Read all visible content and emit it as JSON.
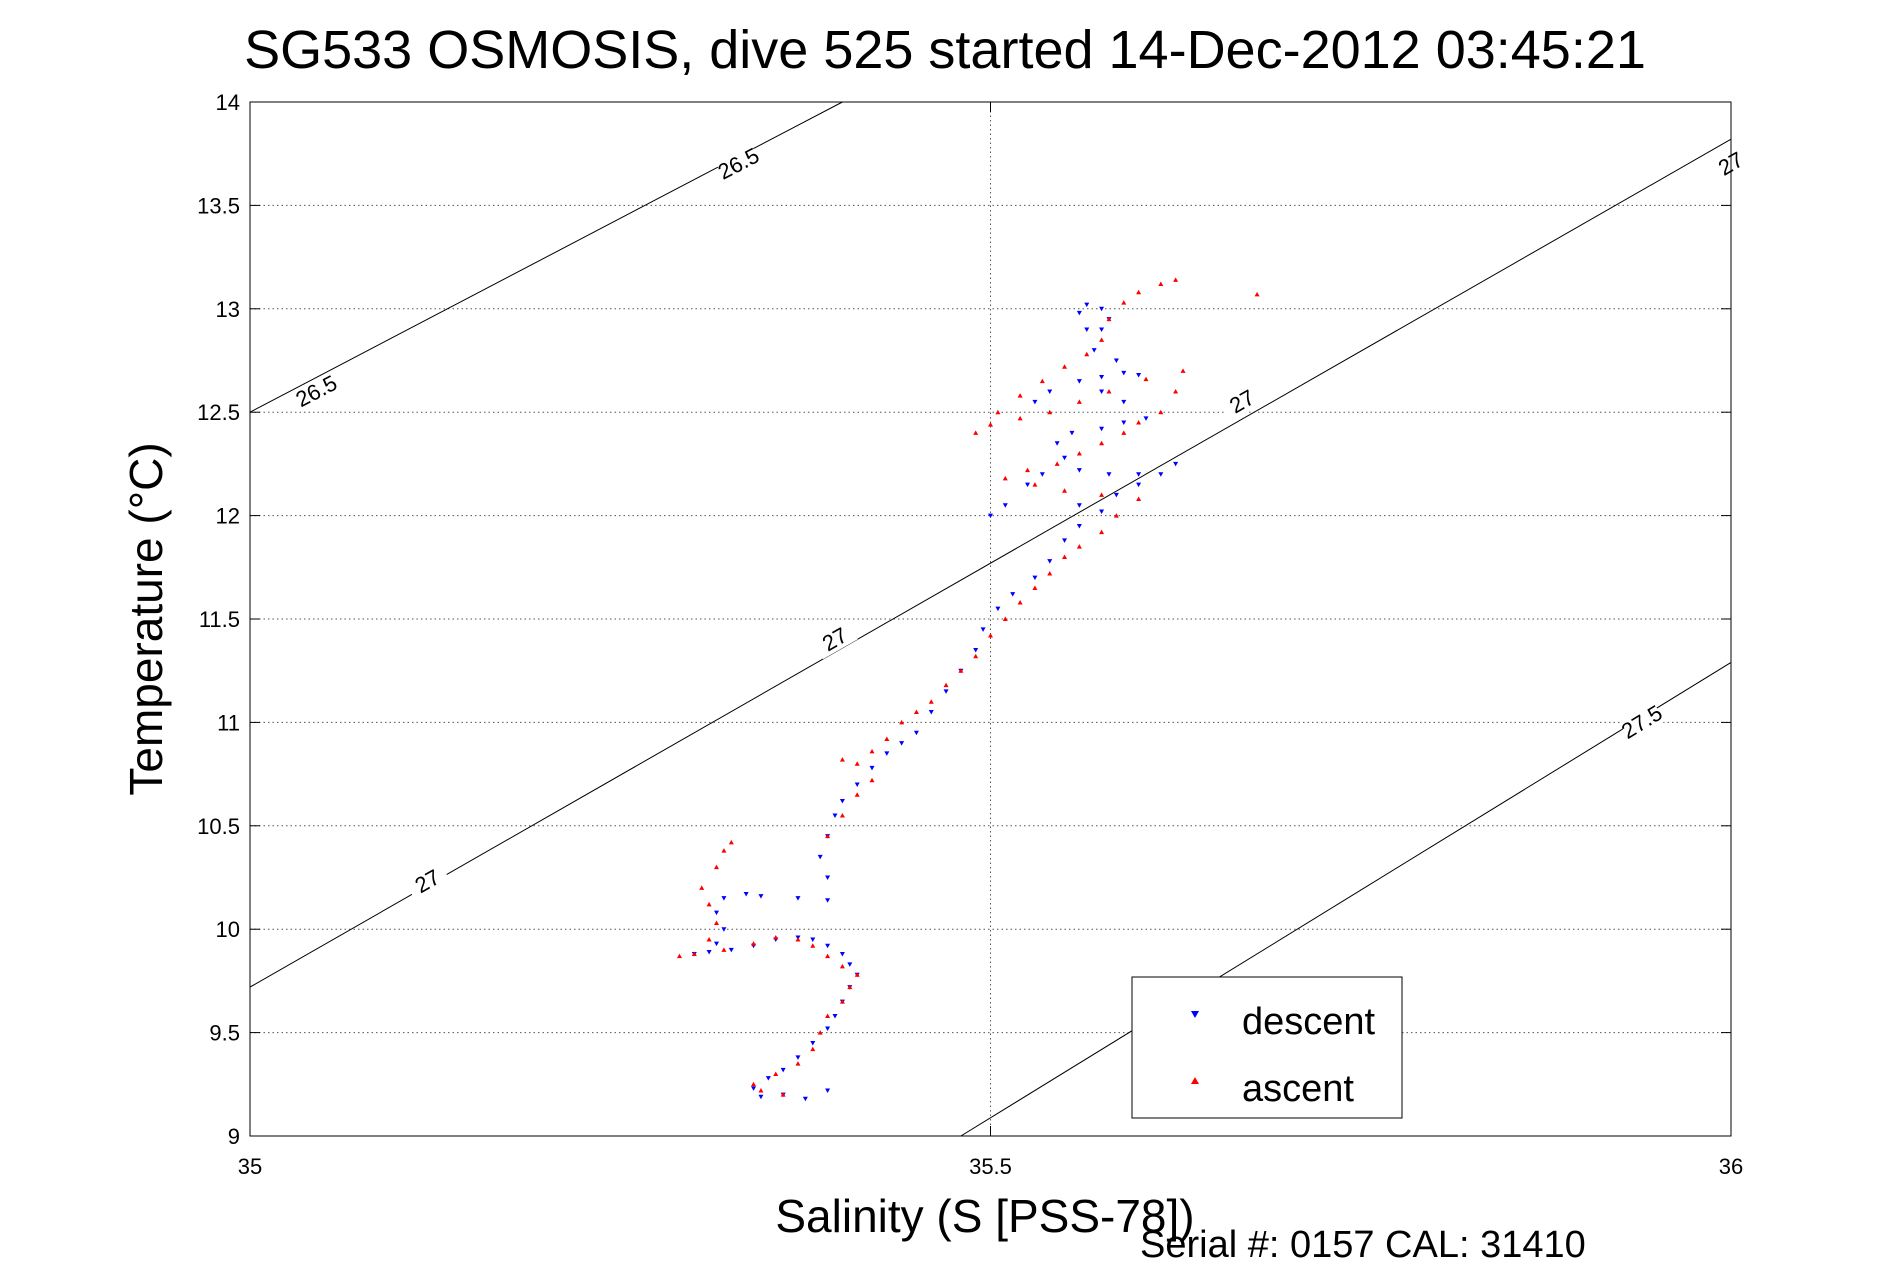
{
  "chart_data": {
    "type": "scatter",
    "title": "SG533 OSMOSIS, dive 525 started 14-Dec-2012 03:45:21",
    "xlabel": "Salinity (S [PSS-78])",
    "ylabel": "Temperature (°C)",
    "xlim": [
      35,
      36
    ],
    "ylim": [
      9,
      14
    ],
    "xticks": [
      35,
      35.5,
      36
    ],
    "xtick_labels": [
      "35",
      "35.5",
      "36"
    ],
    "yticks": [
      9,
      9.5,
      10,
      10.5,
      11,
      11.5,
      12,
      12.5,
      13,
      13.5,
      14
    ],
    "ytick_labels": [
      "9",
      "9.5",
      "10",
      "10.5",
      "11",
      "11.5",
      "12",
      "12.5",
      "13",
      "13.5",
      "14"
    ],
    "grid": true,
    "legend_position": "bottom-right",
    "footer": "Serial #: 0157  CAL: 31410",
    "contours": [
      {
        "label": "26.5",
        "x": [
          35.0,
          35.4
        ],
        "y": [
          12.5,
          14.0
        ],
        "label_positions": [
          [
            35.045,
            12.6
          ],
          [
            35.33,
            13.7
          ]
        ]
      },
      {
        "label": "27",
        "x": [
          35.0,
          36.0
        ],
        "y": [
          9.72,
          13.82
        ],
        "label_positions": [
          [
            35.12,
            10.23
          ],
          [
            35.395,
            11.4
          ],
          [
            35.67,
            12.55
          ],
          [
            36.0,
            13.7
          ]
        ]
      },
      {
        "label": "27.5",
        "x": [
          35.48,
          36.0
        ],
        "y": [
          9.0,
          11.29
        ],
        "label_positions": [
          [
            35.615,
            9.58
          ],
          [
            35.94,
            11.0
          ]
        ]
      }
    ],
    "series": [
      {
        "name": "descent",
        "color": "#0000ff",
        "marker": "triangle-down",
        "points": [
          [
            35.39,
            9.22
          ],
          [
            35.375,
            9.18
          ],
          [
            35.36,
            9.2
          ],
          [
            35.345,
            9.19
          ],
          [
            35.34,
            9.23
          ],
          [
            35.35,
            9.28
          ],
          [
            35.36,
            9.32
          ],
          [
            35.37,
            9.38
          ],
          [
            35.38,
            9.45
          ],
          [
            35.39,
            9.52
          ],
          [
            35.395,
            9.58
          ],
          [
            35.4,
            9.65
          ],
          [
            35.405,
            9.72
          ],
          [
            35.41,
            9.78
          ],
          [
            35.405,
            9.83
          ],
          [
            35.4,
            9.88
          ],
          [
            35.39,
            9.92
          ],
          [
            35.38,
            9.95
          ],
          [
            35.37,
            9.96
          ],
          [
            35.355,
            9.95
          ],
          [
            35.34,
            9.92
          ],
          [
            35.325,
            9.9
          ],
          [
            35.31,
            9.89
          ],
          [
            35.3,
            9.88
          ],
          [
            35.315,
            9.93
          ],
          [
            35.32,
            10.0
          ],
          [
            35.315,
            10.08
          ],
          [
            35.32,
            10.15
          ],
          [
            35.335,
            10.17
          ],
          [
            35.345,
            10.16
          ],
          [
            35.37,
            10.15
          ],
          [
            35.39,
            10.14
          ],
          [
            35.39,
            10.25
          ],
          [
            35.385,
            10.35
          ],
          [
            35.39,
            10.45
          ],
          [
            35.395,
            10.55
          ],
          [
            35.4,
            10.62
          ],
          [
            35.41,
            10.7
          ],
          [
            35.42,
            10.78
          ],
          [
            35.43,
            10.85
          ],
          [
            35.44,
            10.9
          ],
          [
            35.45,
            10.95
          ],
          [
            35.46,
            11.05
          ],
          [
            35.47,
            11.15
          ],
          [
            35.48,
            11.25
          ],
          [
            35.49,
            11.35
          ],
          [
            35.495,
            11.45
          ],
          [
            35.505,
            11.55
          ],
          [
            35.515,
            11.62
          ],
          [
            35.53,
            11.7
          ],
          [
            35.54,
            11.78
          ],
          [
            35.55,
            11.88
          ],
          [
            35.56,
            11.95
          ],
          [
            35.56,
            12.05
          ],
          [
            35.575,
            12.02
          ],
          [
            35.585,
            12.1
          ],
          [
            35.6,
            12.15
          ],
          [
            35.615,
            12.2
          ],
          [
            35.625,
            12.25
          ],
          [
            35.6,
            12.2
          ],
          [
            35.58,
            12.2
          ],
          [
            35.56,
            12.22
          ],
          [
            35.55,
            12.28
          ],
          [
            35.545,
            12.35
          ],
          [
            35.555,
            12.4
          ],
          [
            35.575,
            12.42
          ],
          [
            35.59,
            12.45
          ],
          [
            35.605,
            12.47
          ],
          [
            35.59,
            12.55
          ],
          [
            35.575,
            12.6
          ],
          [
            35.56,
            12.65
          ],
          [
            35.575,
            12.67
          ],
          [
            35.59,
            12.69
          ],
          [
            35.6,
            12.68
          ],
          [
            35.585,
            12.75
          ],
          [
            35.57,
            12.8
          ],
          [
            35.565,
            12.9
          ],
          [
            35.56,
            12.98
          ],
          [
            35.565,
            13.02
          ],
          [
            35.575,
            13.0
          ],
          [
            35.58,
            12.95
          ],
          [
            35.575,
            12.9
          ],
          [
            35.535,
            12.2
          ],
          [
            35.525,
            12.15
          ],
          [
            35.51,
            12.05
          ],
          [
            35.5,
            12.0
          ],
          [
            35.53,
            12.55
          ],
          [
            35.54,
            12.6
          ]
        ]
      },
      {
        "name": "ascent",
        "color": "#ff0000",
        "marker": "triangle-up",
        "points": [
          [
            35.36,
            9.2
          ],
          [
            35.345,
            9.22
          ],
          [
            35.34,
            9.25
          ],
          [
            35.355,
            9.3
          ],
          [
            35.37,
            9.35
          ],
          [
            35.38,
            9.42
          ],
          [
            35.385,
            9.5
          ],
          [
            35.39,
            9.58
          ],
          [
            35.4,
            9.65
          ],
          [
            35.405,
            9.72
          ],
          [
            35.41,
            9.78
          ],
          [
            35.4,
            9.82
          ],
          [
            35.39,
            9.87
          ],
          [
            35.38,
            9.92
          ],
          [
            35.37,
            9.95
          ],
          [
            35.355,
            9.96
          ],
          [
            35.34,
            9.93
          ],
          [
            35.32,
            9.9
          ],
          [
            35.3,
            9.88
          ],
          [
            35.29,
            9.87
          ],
          [
            35.31,
            9.95
          ],
          [
            35.315,
            10.03
          ],
          [
            35.31,
            10.12
          ],
          [
            35.305,
            10.2
          ],
          [
            35.315,
            10.3
          ],
          [
            35.32,
            10.38
          ],
          [
            35.325,
            10.42
          ],
          [
            35.39,
            10.45
          ],
          [
            35.4,
            10.55
          ],
          [
            35.41,
            10.65
          ],
          [
            35.42,
            10.72
          ],
          [
            35.41,
            10.8
          ],
          [
            35.4,
            10.82
          ],
          [
            35.42,
            10.86
          ],
          [
            35.43,
            10.92
          ],
          [
            35.44,
            11.0
          ],
          [
            35.45,
            11.05
          ],
          [
            35.46,
            11.1
          ],
          [
            35.47,
            11.18
          ],
          [
            35.48,
            11.25
          ],
          [
            35.49,
            11.32
          ],
          [
            35.5,
            11.42
          ],
          [
            35.51,
            11.5
          ],
          [
            35.52,
            11.58
          ],
          [
            35.53,
            11.65
          ],
          [
            35.54,
            11.72
          ],
          [
            35.55,
            11.8
          ],
          [
            35.56,
            11.85
          ],
          [
            35.575,
            11.92
          ],
          [
            35.585,
            12.0
          ],
          [
            35.6,
            12.08
          ],
          [
            35.575,
            12.1
          ],
          [
            35.55,
            12.12
          ],
          [
            35.53,
            12.15
          ],
          [
            35.51,
            12.18
          ],
          [
            35.525,
            12.22
          ],
          [
            35.545,
            12.25
          ],
          [
            35.56,
            12.3
          ],
          [
            35.575,
            12.35
          ],
          [
            35.59,
            12.4
          ],
          [
            35.6,
            12.45
          ],
          [
            35.615,
            12.5
          ],
          [
            35.625,
            12.6
          ],
          [
            35.63,
            12.7
          ],
          [
            35.605,
            12.66
          ],
          [
            35.58,
            12.6
          ],
          [
            35.56,
            12.55
          ],
          [
            35.54,
            12.5
          ],
          [
            35.52,
            12.47
          ],
          [
            35.5,
            12.44
          ],
          [
            35.49,
            12.4
          ],
          [
            35.505,
            12.5
          ],
          [
            35.52,
            12.58
          ],
          [
            35.535,
            12.65
          ],
          [
            35.55,
            12.72
          ],
          [
            35.565,
            12.78
          ],
          [
            35.575,
            12.85
          ],
          [
            35.58,
            12.95
          ],
          [
            35.59,
            13.03
          ],
          [
            35.6,
            13.08
          ],
          [
            35.615,
            13.12
          ],
          [
            35.625,
            13.14
          ],
          [
            35.68,
            13.07
          ]
        ]
      }
    ]
  },
  "legend": {
    "descent_label": "descent",
    "ascent_label": "ascent"
  }
}
